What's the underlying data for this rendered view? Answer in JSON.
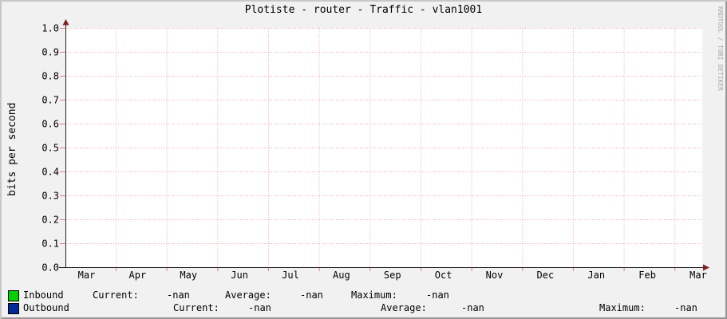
{
  "watermark": "RRDTOOL / TOBI OETIKER",
  "colors": {
    "background": "#f1f1f1",
    "canvas": "#ffffff",
    "grid": "#f0a3a3",
    "tick": "#e08080",
    "axis": "#1f1f1f",
    "arrow": "#7f1f1f",
    "border_light": "#c8c8c8",
    "border_dark": "#969696",
    "inbound": "#00cf00",
    "outbound": "#002a97"
  },
  "chart_data": {
    "type": "line",
    "title": "Plotiste - router - Traffic - vlan1001",
    "ylabel": "bits per second",
    "xlabel": "",
    "x_tick_labels": [
      "Mar",
      "Apr",
      "May",
      "Jun",
      "Jul",
      "Aug",
      "Sep",
      "Oct",
      "Nov",
      "Dec",
      "Jan",
      "Feb",
      "Mar"
    ],
    "y_tick_labels": [
      "0.0",
      "0.1",
      "0.2",
      "0.3",
      "0.4",
      "0.5",
      "0.6",
      "0.7",
      "0.8",
      "0.9",
      "1.0"
    ],
    "ylim": [
      0.0,
      1.0
    ],
    "grid": true,
    "legend_position": "bottom",
    "series": [
      {
        "name": "Inbound",
        "color": "#00cf00",
        "values": [],
        "current": "-nan",
        "average": "-nan",
        "maximum": "-nan"
      },
      {
        "name": "Outbound",
        "color": "#002a97",
        "values": [],
        "current": "-nan",
        "average": "-nan",
        "maximum": "-nan"
      }
    ]
  },
  "legend": {
    "rows": [
      {
        "series": "Inbound",
        "color": "#00cf00",
        "cells": [
          "Inbound",
          "Current:",
          "-nan",
          "Average:",
          "-nan",
          "Maximum:",
          "-nan"
        ]
      },
      {
        "series": "Outbound",
        "color": "#002a97",
        "cells": [
          "Outbound",
          "Current:",
          "-nan",
          "Average:",
          "-nan",
          "Maximum:",
          "-nan"
        ]
      }
    ]
  }
}
